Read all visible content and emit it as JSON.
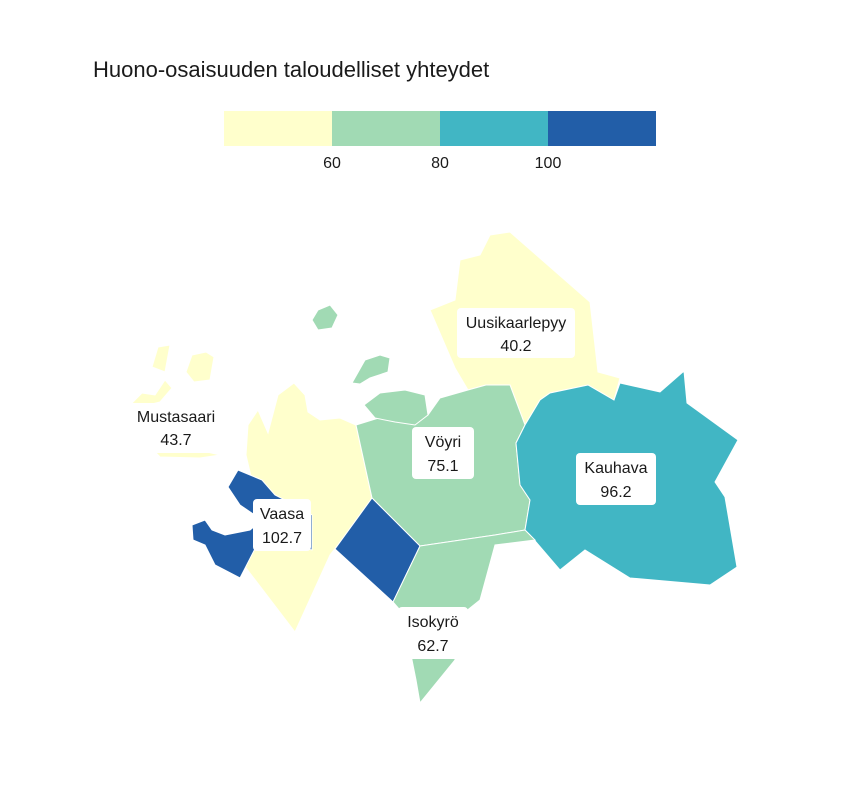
{
  "title": "Huono-osaisuuden taloudelliset yhteydet",
  "legend": {
    "bins": [
      {
        "max": 60,
        "color": "#ffffcc"
      },
      {
        "min": 60,
        "max": 80,
        "color": "#a1dab4"
      },
      {
        "min": 80,
        "max": 100,
        "color": "#41b6c4"
      },
      {
        "min": 100,
        "color": "#225ea8"
      }
    ],
    "ticks": [
      "60",
      "80",
      "100"
    ]
  },
  "regions": [
    {
      "name": "Uusikaarlepyy",
      "value": "40.2",
      "color": "#ffffcc"
    },
    {
      "name": "Mustasaari",
      "value": "43.7",
      "color": "#ffffcc"
    },
    {
      "name": "Vöyri",
      "value": "75.1",
      "color": "#a1dab4"
    },
    {
      "name": "Kauhava",
      "value": "96.2",
      "color": "#41b6c4"
    },
    {
      "name": "Vaasa",
      "value": "102.7",
      "color": "#225ea8"
    },
    {
      "name": "Isokyrö",
      "value": "62.7",
      "color": "#a1dab4"
    }
  ]
}
